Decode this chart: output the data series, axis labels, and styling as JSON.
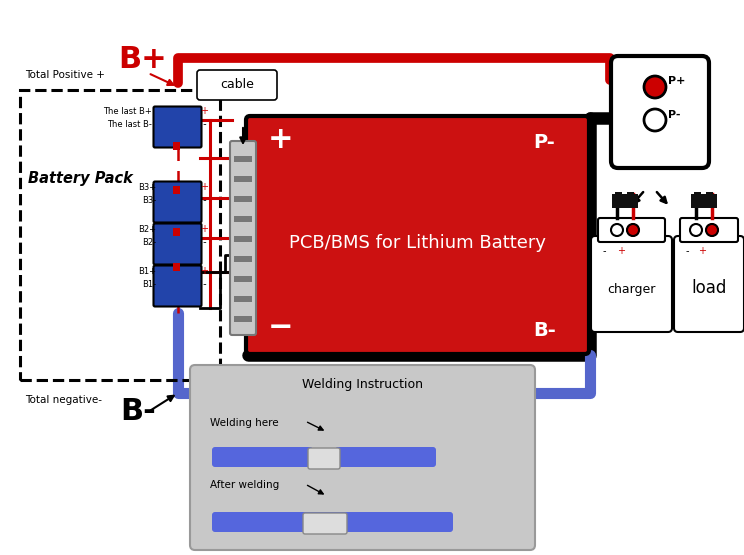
{
  "bg_color": "#ffffff",
  "red": "#cc0000",
  "blue_wire": "#4455bb",
  "black": "#000000",
  "batt_blue": "#2244aa",
  "bms_red": "#cc1111",
  "light_gray": "#c8c8c8",
  "dark_gray": "#777777",
  "pcb_text": "PCB/BMS for Lithium Battery",
  "cable_label": "cable",
  "battery_pack_label": "Battery Pack",
  "total_positive": "Total Positive +",
  "Bplus": "B+",
  "total_negative": "Total negative-",
  "Bminus": "B-",
  "charger_label": "charger",
  "load_label": "load",
  "welding_title": "Welding Instruction",
  "welding_here": "Welding here",
  "after_welding": "After welding",
  "Pplus": "P+",
  "Pminus": "P-"
}
